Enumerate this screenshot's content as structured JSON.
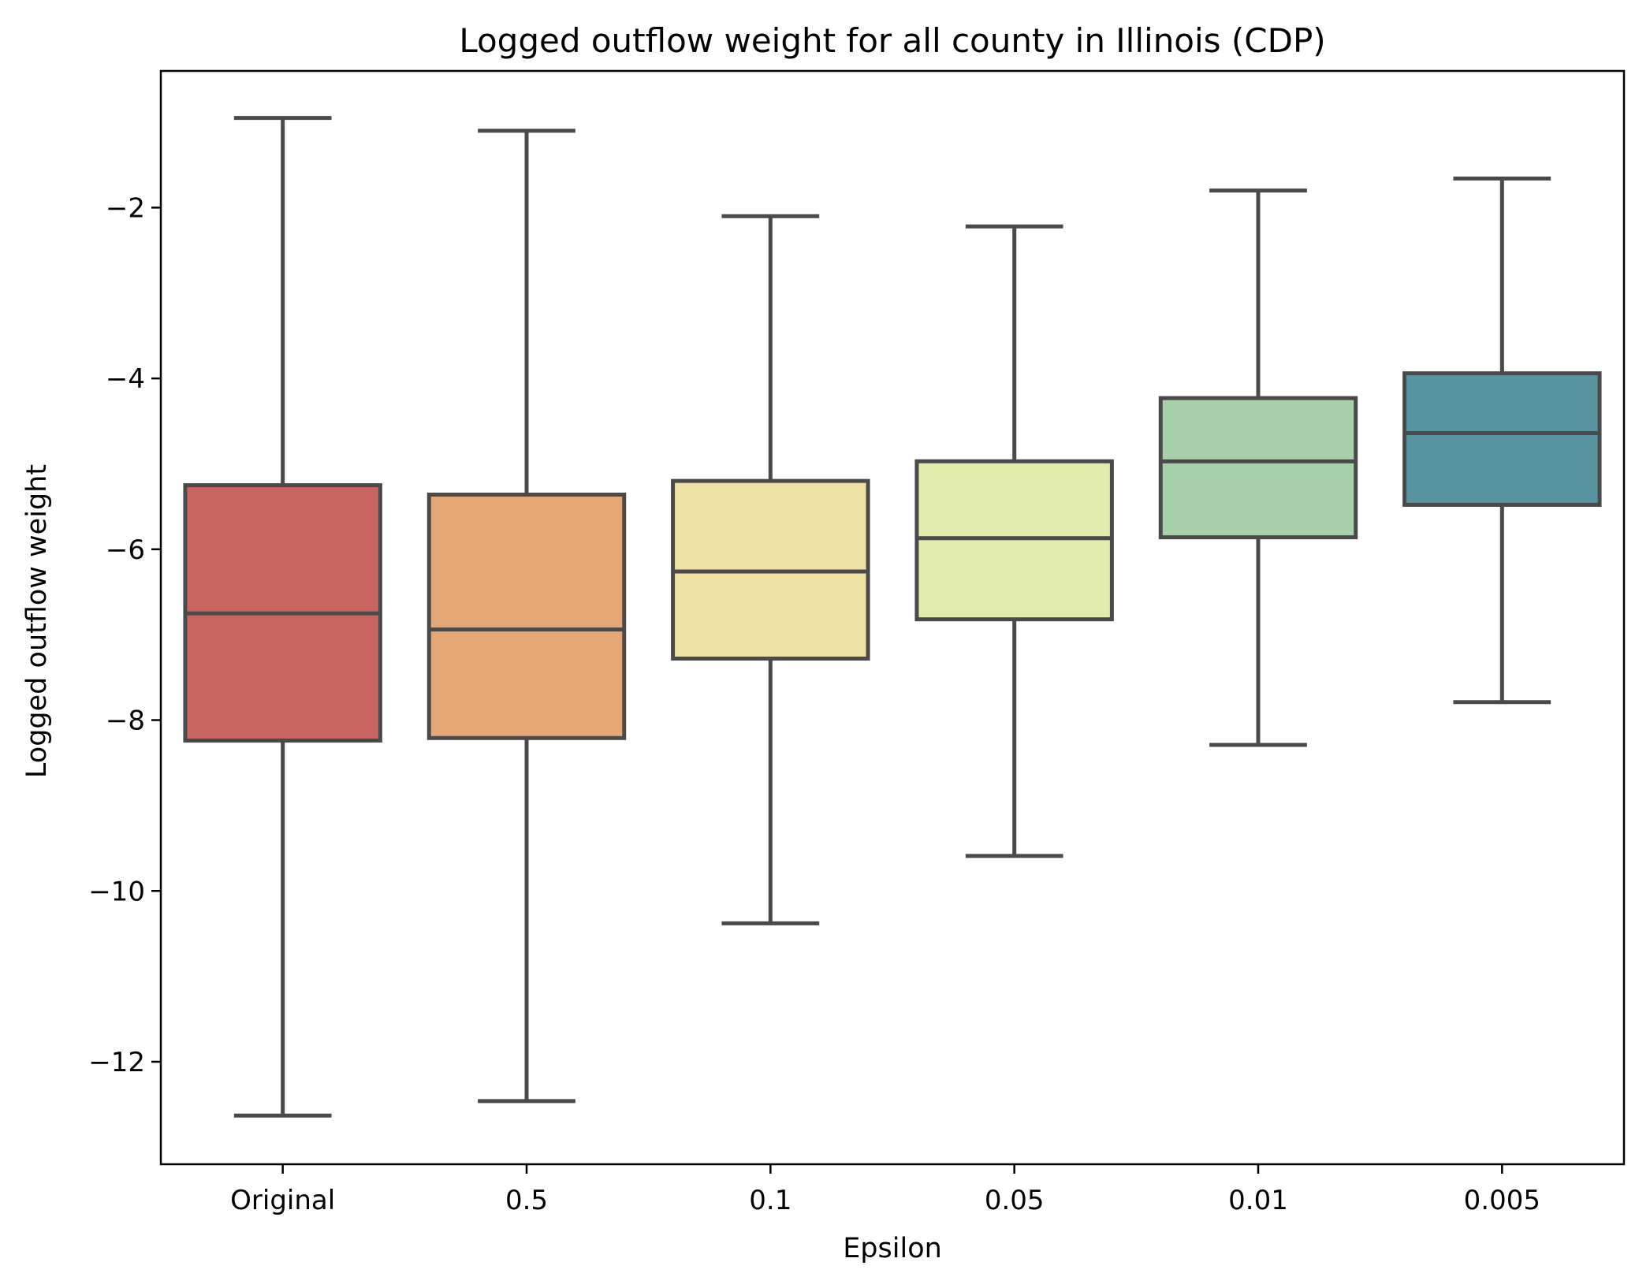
{
  "chart_data": {
    "type": "box",
    "title": "Logged outflow weight for all county in Illinois (CDP)",
    "xlabel": "Epsilon",
    "ylabel": "Logged outflow weight",
    "ylim": [
      -13.2,
      -0.4
    ],
    "yticks": [
      -2,
      -4,
      -6,
      -8,
      -10,
      -12
    ],
    "ytick_labels": [
      "−2",
      "−4",
      "−6",
      "−8",
      "−10",
      "−12"
    ],
    "grid": false,
    "legend": "none",
    "categories": [
      "Original",
      "0.5",
      "0.1",
      "0.05",
      "0.01",
      "0.005"
    ],
    "boxes": [
      {
        "category": "Original",
        "whisker_low": -12.63,
        "q1": -8.24,
        "median": -6.75,
        "q3": -5.25,
        "whisker_high": -0.95,
        "color": "#c9645e"
      },
      {
        "category": "0.5",
        "whisker_low": -12.46,
        "q1": -8.21,
        "median": -6.94,
        "q3": -5.36,
        "whisker_high": -1.1,
        "color": "#e5a775"
      },
      {
        "category": "0.1",
        "whisker_low": -10.38,
        "q1": -7.28,
        "median": -6.26,
        "q3": -5.2,
        "whisker_high": -2.1,
        "color": "#efe0a4"
      },
      {
        "category": "0.05",
        "whisker_low": -9.59,
        "q1": -6.82,
        "median": -5.87,
        "q3": -4.97,
        "whisker_high": -2.22,
        "color": "#e2ebae"
      },
      {
        "category": "0.01",
        "whisker_low": -8.29,
        "q1": -5.86,
        "median": -4.97,
        "q3": -4.23,
        "whisker_high": -1.8,
        "color": "#a7d0a8"
      },
      {
        "category": "0.005",
        "whisker_low": -7.79,
        "q1": -5.48,
        "median": -4.64,
        "q3": -3.94,
        "whisker_high": -1.66,
        "color": "#5994a1"
      }
    ]
  }
}
